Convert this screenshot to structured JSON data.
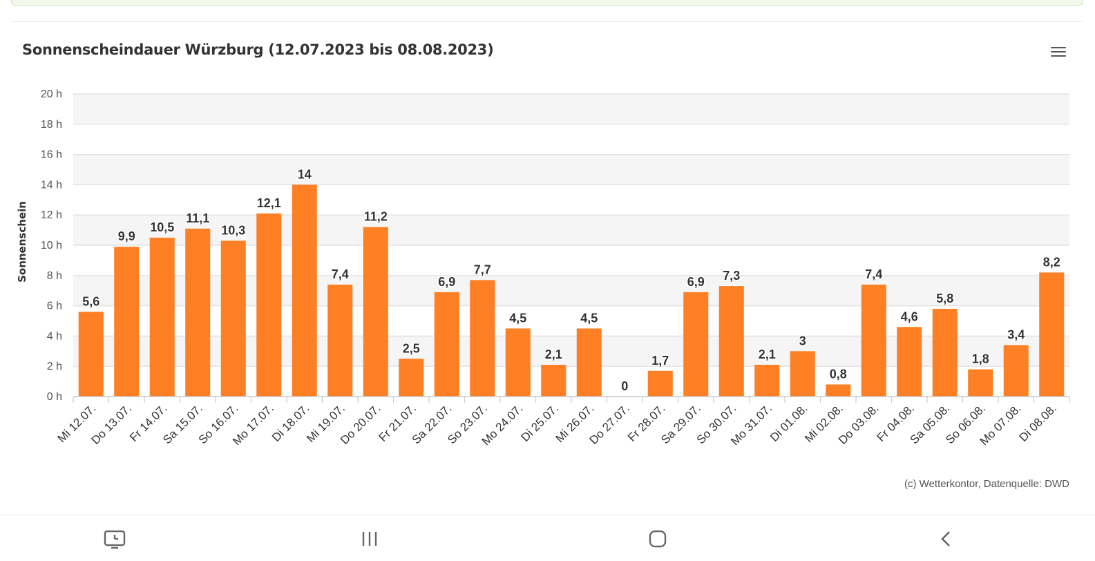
{
  "chart_data": {
    "type": "bar",
    "title": "Sonnenscheindauer Würzburg (12.07.2023 bis 08.08.2023)",
    "ylabel": "Sonnenschein",
    "xlabel": "",
    "ylim": [
      0,
      20
    ],
    "yticks": [
      "0 h",
      "2 h",
      "4 h",
      "6 h",
      "8 h",
      "10 h",
      "12 h",
      "14 h",
      "16 h",
      "18 h",
      "20 h"
    ],
    "categories": [
      "Mi 12.07.",
      "Do 13.07.",
      "Fr 14.07.",
      "Sa 15.07.",
      "So 16.07.",
      "Mo 17.07.",
      "Di 18.07.",
      "Mi 19.07.",
      "Do 20.07.",
      "Fr 21.07.",
      "Sa 22.07.",
      "So 23.07.",
      "Mo 24.07.",
      "Di 25.07.",
      "Mi 26.07.",
      "Do 27.07.",
      "Fr 28.07.",
      "Sa 29.07.",
      "So 30.07.",
      "Mo 31.07.",
      "Di 01.08.",
      "Mi 02.08.",
      "Do 03.08.",
      "Fr 04.08.",
      "Sa 05.08.",
      "So 06.08.",
      "Mo 07.08.",
      "Di 08.08."
    ],
    "values": [
      5.6,
      9.9,
      10.5,
      11.1,
      10.3,
      12.1,
      14,
      7.4,
      11.2,
      2.5,
      6.9,
      7.7,
      4.5,
      2.1,
      4.5,
      0,
      1.7,
      6.9,
      7.3,
      2.1,
      3,
      0.8,
      7.4,
      4.6,
      5.8,
      1.8,
      3.4,
      8.2
    ],
    "data_labels": [
      "5,6",
      "9,9",
      "10,5",
      "11,1",
      "10,3",
      "12,1",
      "14",
      "7,4",
      "11,2",
      "2,5",
      "6,9",
      "7,7",
      "4,5",
      "2,1",
      "4,5",
      "0",
      "1,7",
      "6,9",
      "7,3",
      "2,1",
      "3",
      "0,8",
      "7,4",
      "4,6",
      "5,8",
      "1,8",
      "3,4",
      "8,2"
    ],
    "bar_color": "#ff7f24",
    "grid": true,
    "legend": false
  },
  "credits": "(c) Wetterkontor, Datenquelle: DWD",
  "menu_icon": "hamburger-menu-icon",
  "nav_icons": [
    "screenshot-icon",
    "recent-apps-icon",
    "home-icon",
    "back-icon"
  ]
}
